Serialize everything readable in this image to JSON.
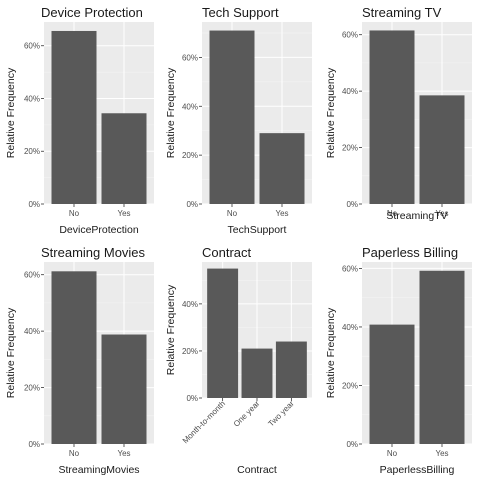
{
  "chart_data": [
    {
      "type": "bar",
      "title": "Device Protection",
      "xlabel": "DeviceProtection",
      "ylabel": "Relative Frequency",
      "categories": [
        "No",
        "Yes"
      ],
      "values": [
        0.656,
        0.344
      ],
      "ylim": [
        0,
        0.69
      ],
      "yticks": [
        0,
        0.2,
        0.4,
        0.6
      ],
      "ytick_labels": [
        "0%",
        "20%",
        "40%",
        "60%"
      ],
      "rotate_x": false
    },
    {
      "type": "bar",
      "title": "Tech Support",
      "xlabel": "TechSupport",
      "ylabel": "Relative Frequency",
      "categories": [
        "No",
        "Yes"
      ],
      "values": [
        0.71,
        0.29
      ],
      "ylim": [
        0,
        0.745
      ],
      "yticks": [
        0,
        0.2,
        0.4,
        0.6
      ],
      "ytick_labels": [
        "0%",
        "20%",
        "40%",
        "60%"
      ],
      "rotate_x": false
    },
    {
      "type": "bar",
      "title": "Streaming TV",
      "xlabel": "StreamingTV",
      "ylabel": "Relative Frequency",
      "categories": [
        "No",
        "Yes"
      ],
      "values": [
        0.615,
        0.385
      ],
      "ylim": [
        0,
        0.645
      ],
      "yticks": [
        0,
        0.2,
        0.4,
        0.6
      ],
      "ytick_labels": [
        "0%",
        "20%",
        "40%",
        "60%"
      ],
      "rotate_x": false
    },
    {
      "type": "bar",
      "title": "Streaming Movies",
      "xlabel": "StreamingMovies",
      "ylabel": "Relative Frequency",
      "categories": [
        "No",
        "Yes"
      ],
      "values": [
        0.612,
        0.388
      ],
      "ylim": [
        0,
        0.645
      ],
      "yticks": [
        0,
        0.2,
        0.4,
        0.6
      ],
      "ytick_labels": [
        "0%",
        "20%",
        "40%",
        "60%"
      ],
      "rotate_x": false
    },
    {
      "type": "bar",
      "title": "Contract",
      "xlabel": "Contract",
      "ylabel": "Relative Frequency",
      "categories": [
        "Month-to-month",
        "One year",
        "Two year"
      ],
      "values": [
        0.55,
        0.21,
        0.24
      ],
      "ylim": [
        0,
        0.578
      ],
      "yticks": [
        0,
        0.2,
        0.4
      ],
      "ytick_labels": [
        "0%",
        "20%",
        "40%"
      ],
      "rotate_x": true
    },
    {
      "type": "bar",
      "title": "Paperless Billing",
      "xlabel": "PaperlessBilling",
      "ylabel": "Relative Frequency",
      "categories": [
        "No",
        "Yes"
      ],
      "values": [
        0.408,
        0.592
      ],
      "ylim": [
        0,
        0.622
      ],
      "yticks": [
        0,
        0.2,
        0.4,
        0.6
      ],
      "ytick_labels": [
        "0%",
        "20%",
        "40%",
        "60%"
      ],
      "rotate_x": false
    }
  ],
  "colors": {
    "bar": "#595959",
    "panel_background": "#ebebeb",
    "grid": "#ffffff"
  }
}
